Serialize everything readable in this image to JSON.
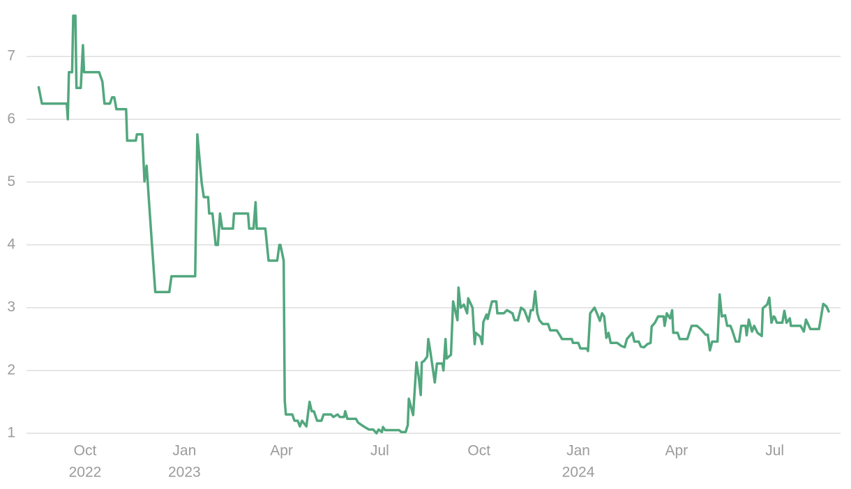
{
  "chart_data": {
    "type": "line",
    "x": [
      "2022-08-19",
      "2022-08-22",
      "2022-09-14",
      "2022-09-15",
      "2022-09-16",
      "2022-09-19",
      "2022-09-20",
      "2022-09-22",
      "2022-09-23",
      "2022-09-27",
      "2022-09-29",
      "2022-09-30",
      "2022-10-14",
      "2022-10-17",
      "2022-10-19",
      "2022-10-24",
      "2022-10-26",
      "2022-10-28",
      "2022-10-30",
      "2022-11-08",
      "2022-11-09",
      "2022-11-17",
      "2022-11-18",
      "2022-11-23",
      "2022-11-25",
      "2022-11-27",
      "2022-11-29",
      "2022-12-01",
      "2022-12-05",
      "2022-12-18",
      "2022-12-20",
      "2023-01-11",
      "2023-01-13",
      "2023-01-17",
      "2023-01-19",
      "2023-01-23",
      "2023-01-24",
      "2023-01-27",
      "2023-01-30",
      "2023-02-01",
      "2023-02-03",
      "2023-02-05",
      "2023-02-15",
      "2023-02-16",
      "2023-03-01",
      "2023-03-02",
      "2023-03-06",
      "2023-03-08",
      "2023-03-09",
      "2023-03-17",
      "2023-03-20",
      "2023-03-28",
      "2023-03-30",
      "2023-03-31",
      "2023-04-03",
      "2023-04-04",
      "2023-04-05",
      "2023-04-11",
      "2023-04-13",
      "2023-04-16",
      "2023-04-18",
      "2023-04-20",
      "2023-04-24",
      "2023-04-27",
      "2023-04-29",
      "2023-05-01",
      "2023-05-04",
      "2023-05-08",
      "2023-05-10",
      "2023-05-17",
      "2023-05-19",
      "2023-05-23",
      "2023-05-25",
      "2023-05-29",
      "2023-05-30",
      "2023-06-01",
      "2023-06-09",
      "2023-06-11",
      "2023-06-16",
      "2023-06-21",
      "2023-06-25",
      "2023-06-28",
      "2023-06-30",
      "2023-07-03",
      "2023-07-04",
      "2023-07-06",
      "2023-07-19",
      "2023-07-21",
      "2023-07-25",
      "2023-07-27",
      "2023-07-28",
      "2023-08-01",
      "2023-08-04",
      "2023-08-06",
      "2023-08-08",
      "2023-08-09",
      "2023-08-11",
      "2023-08-14",
      "2023-08-15",
      "2023-08-17",
      "2023-08-21",
      "2023-08-23",
      "2023-08-28",
      "2023-08-29",
      "2023-08-31",
      "2023-09-01",
      "2023-09-05",
      "2023-09-07",
      "2023-09-11",
      "2023-09-12",
      "2023-09-14",
      "2023-09-17",
      "2023-09-20",
      "2023-09-21",
      "2023-09-25",
      "2023-09-27",
      "2023-09-28",
      "2023-10-02",
      "2023-10-04",
      "2023-10-05",
      "2023-10-08",
      "2023-10-09",
      "2023-10-13",
      "2023-10-17",
      "2023-10-18",
      "2023-10-24",
      "2023-10-27",
      "2023-11-01",
      "2023-11-03",
      "2023-11-06",
      "2023-11-09",
      "2023-11-12",
      "2023-11-16",
      "2023-11-18",
      "2023-11-20",
      "2023-11-22",
      "2023-11-24",
      "2023-11-26",
      "2023-11-29",
      "2023-12-04",
      "2023-12-06",
      "2023-12-12",
      "2023-12-15",
      "2023-12-17",
      "2023-12-26",
      "2023-12-27",
      "2024-01-01",
      "2024-01-03",
      "2024-01-09",
      "2024-01-10",
      "2024-01-12",
      "2024-01-16",
      "2024-01-19",
      "2024-01-21",
      "2024-01-23",
      "2024-01-25",
      "2024-01-27",
      "2024-01-29",
      "2024-01-31",
      "2024-02-06",
      "2024-02-10",
      "2024-02-13",
      "2024-02-15",
      "2024-02-20",
      "2024-02-22",
      "2024-02-26",
      "2024-02-28",
      "2024-03-02",
      "2024-03-05",
      "2024-03-08",
      "2024-03-09",
      "2024-03-12",
      "2024-03-15",
      "2024-03-20",
      "2024-03-21",
      "2024-03-23",
      "2024-03-26",
      "2024-03-28",
      "2024-03-29",
      "2024-04-02",
      "2024-04-04",
      "2024-04-11",
      "2024-04-15",
      "2024-04-20",
      "2024-04-24",
      "2024-04-28",
      "2024-04-30",
      "2024-05-02",
      "2024-05-04",
      "2024-05-09",
      "2024-05-11",
      "2024-05-13",
      "2024-05-16",
      "2024-05-18",
      "2024-05-21",
      "2024-05-23",
      "2024-05-26",
      "2024-05-29",
      "2024-05-31",
      "2024-06-04",
      "2024-06-05",
      "2024-06-07",
      "2024-06-10",
      "2024-06-12",
      "2024-06-15",
      "2024-06-19",
      "2024-06-20",
      "2024-06-24",
      "2024-06-26",
      "2024-06-28",
      "2024-06-30",
      "2024-07-01",
      "2024-07-03",
      "2024-07-08",
      "2024-07-10",
      "2024-07-12",
      "2024-07-15",
      "2024-07-16",
      "2024-07-25",
      "2024-07-28",
      "2024-07-30",
      "2024-08-03",
      "2024-08-11",
      "2024-08-13",
      "2024-08-15",
      "2024-08-18",
      "2024-08-20"
    ],
    "values": [
      6.51,
      6.25,
      6.25,
      6.0,
      6.75,
      6.75,
      7.65,
      7.65,
      6.5,
      6.5,
      7.18,
      6.75,
      6.75,
      6.6,
      6.25,
      6.25,
      6.35,
      6.35,
      6.16,
      6.16,
      5.66,
      5.66,
      5.76,
      5.76,
      5.01,
      5.26,
      4.74,
      4.24,
      3.25,
      3.25,
      3.5,
      3.5,
      5.76,
      4.99,
      4.76,
      4.76,
      4.5,
      4.5,
      4.0,
      4.0,
      4.5,
      4.26,
      4.26,
      4.5,
      4.5,
      4.26,
      4.26,
      4.68,
      4.26,
      4.26,
      3.75,
      3.75,
      4.0,
      4.0,
      3.75,
      1.52,
      1.3,
      1.3,
      1.2,
      1.2,
      1.11,
      1.2,
      1.11,
      1.5,
      1.35,
      1.35,
      1.2,
      1.2,
      1.3,
      1.3,
      1.26,
      1.3,
      1.26,
      1.26,
      1.35,
      1.23,
      1.23,
      1.17,
      1.11,
      1.06,
      1.06,
      1.0,
      1.06,
      1.02,
      1.1,
      1.05,
      1.05,
      1.02,
      1.02,
      1.13,
      1.55,
      1.29,
      2.13,
      1.91,
      1.61,
      2.13,
      2.15,
      2.22,
      2.5,
      2.29,
      1.81,
      2.11,
      2.11,
      2.0,
      2.5,
      2.19,
      2.25,
      3.1,
      2.8,
      3.32,
      3.0,
      3.05,
      2.91,
      3.15,
      3.0,
      2.42,
      2.6,
      2.54,
      2.42,
      2.77,
      2.89,
      2.82,
      3.1,
      3.1,
      2.91,
      2.91,
      2.96,
      2.91,
      2.8,
      2.8,
      3.0,
      2.96,
      2.78,
      2.96,
      2.96,
      3.26,
      2.91,
      2.8,
      2.74,
      2.74,
      2.64,
      2.64,
      2.56,
      2.5,
      2.5,
      2.44,
      2.44,
      2.35,
      2.35,
      2.31,
      2.91,
      3.0,
      2.88,
      2.79,
      2.91,
      2.86,
      2.52,
      2.6,
      2.44,
      2.44,
      2.39,
      2.37,
      2.5,
      2.6,
      2.46,
      2.46,
      2.38,
      2.37,
      2.42,
      2.44,
      2.7,
      2.76,
      2.86,
      2.86,
      2.71,
      2.91,
      2.83,
      2.96,
      2.6,
      2.6,
      2.5,
      2.5,
      2.71,
      2.71,
      2.65,
      2.57,
      2.57,
      2.32,
      2.46,
      2.46,
      3.21,
      2.86,
      2.88,
      2.71,
      2.71,
      2.62,
      2.46,
      2.46,
      2.71,
      2.71,
      2.56,
      2.81,
      2.62,
      2.71,
      2.6,
      2.55,
      2.99,
      3.05,
      3.16,
      2.76,
      2.86,
      2.85,
      2.76,
      2.76,
      2.95,
      2.76,
      2.83,
      2.71,
      2.71,
      2.62,
      2.81,
      2.66,
      2.66,
      2.86,
      3.06,
      3.02,
      2.94
    ],
    "color": "#52a77e",
    "xlim": [
      "2022-08-09",
      "2024-08-31"
    ],
    "xticks": [
      {
        "value": "2022-10-01",
        "label": "Oct",
        "year": "2022"
      },
      {
        "value": "2023-01-01",
        "label": "Jan",
        "year": "2023"
      },
      {
        "value": "2023-04-01",
        "label": "Apr"
      },
      {
        "value": "2023-07-01",
        "label": "Jul"
      },
      {
        "value": "2023-10-01",
        "label": "Oct"
      },
      {
        "value": "2024-01-01",
        "label": "Jan",
        "year": "2024"
      },
      {
        "value": "2024-04-01",
        "label": "Apr"
      },
      {
        "value": "2024-07-01",
        "label": "Jul"
      }
    ],
    "ylim": [
      1,
      7.7
    ],
    "yticks": [
      1,
      2,
      3,
      4,
      5,
      6,
      7
    ],
    "grid": true
  }
}
